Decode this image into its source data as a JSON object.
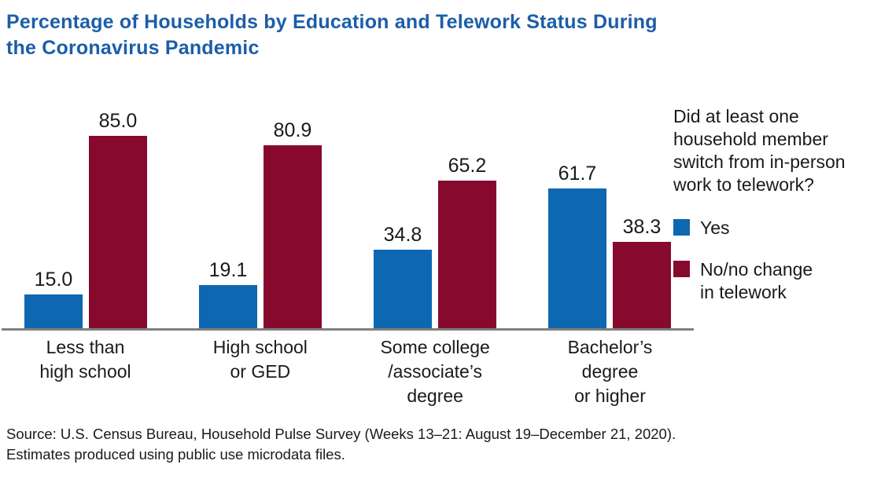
{
  "title": "Percentage of Households by Education and Telework Status During the Coronavirus Pandemic",
  "legend": {
    "question": "Did at least one household member switch from in-person work to telework?",
    "question_lines": [
      "Did at least one",
      "household member",
      "switch from in-person",
      "work to telework?"
    ],
    "items": [
      {
        "label": "Yes",
        "lines": [
          "Yes"
        ],
        "color": "#0e67b1"
      },
      {
        "label": "No/no change in telework",
        "lines": [
          "No/no change",
          "in telework"
        ],
        "color": "#87092e"
      }
    ]
  },
  "source": {
    "line1": "Source: U.S. Census Bureau, Household Pulse Survey (Weeks 13–21: August 19–December 21, 2020).",
    "line2": "Estimates produced using public use microdata files."
  },
  "colors": {
    "title_blue": "#1b5ea9",
    "bar_yes_blue": "#0e67b1",
    "bar_no_red": "#87092e",
    "axis_gray": "#7f7f7f",
    "text_dark": "#1a1a1a"
  },
  "chart_data": {
    "type": "bar",
    "categories": [
      "Less than high school",
      "High school or GED",
      "Some college /associate’s degree",
      "Bachelor’s degree or higher"
    ],
    "category_lines": [
      [
        "Less than",
        "high school"
      ],
      [
        "High school",
        "or GED"
      ],
      [
        "Some college",
        "/associate’s",
        "degree"
      ],
      [
        "Bachelor’s",
        "degree",
        "or higher"
      ]
    ],
    "series": [
      {
        "name": "Yes",
        "color": "#0e67b1",
        "values": [
          15.0,
          19.1,
          34.8,
          61.7
        ]
      },
      {
        "name": "No/no change in telework",
        "color": "#87092e",
        "values": [
          85.0,
          80.9,
          65.2,
          38.3
        ]
      }
    ],
    "title": "Percentage of Households by Education and Telework Status During the Coronavirus Pandemic",
    "xlabel": "",
    "ylabel": "",
    "ylim": [
      0,
      100
    ],
    "grid": false,
    "value_labels_shown": true,
    "legend_position": "right"
  }
}
